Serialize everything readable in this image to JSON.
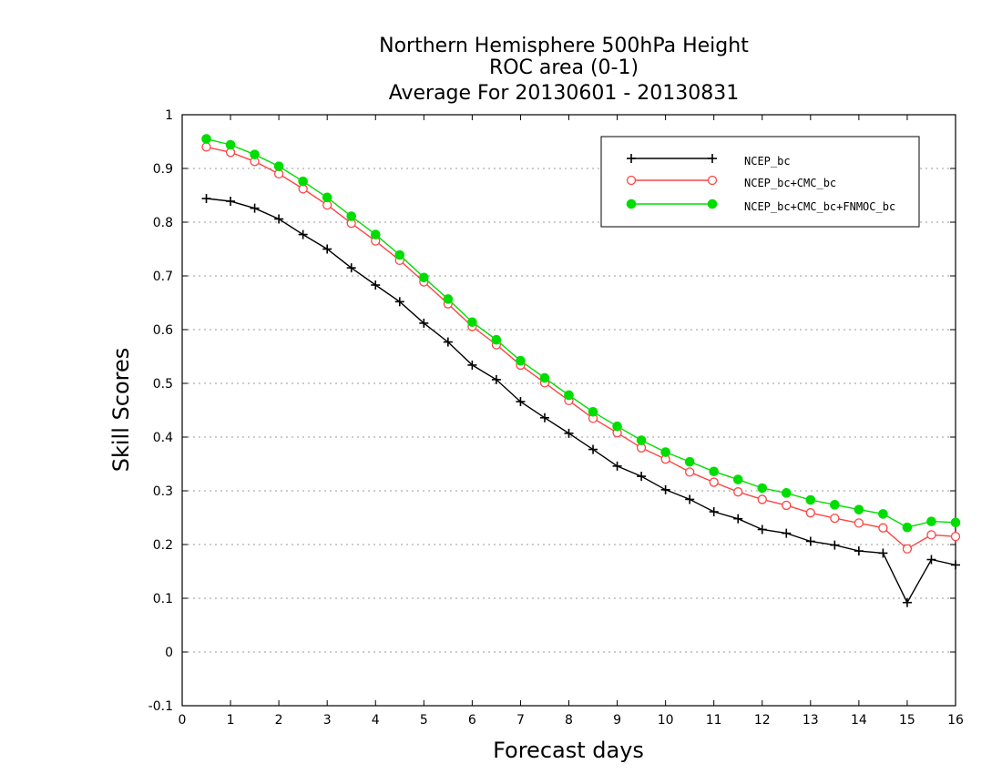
{
  "chart_data": {
    "type": "line",
    "title": "Northern Hemisphere 500hPa Height",
    "subtitle": "ROC area (0-1)",
    "period": "Average For 20130601 - 20130831",
    "xlabel": "Forecast days",
    "ylabel": "Skill Scores",
    "xlim": [
      0,
      16
    ],
    "ylim": [
      -0.1,
      1
    ],
    "xticks": [
      "0",
      "1",
      "2",
      "3",
      "4",
      "5",
      "6",
      "7",
      "8",
      "9",
      "10",
      "11",
      "12",
      "13",
      "14",
      "15",
      "16"
    ],
    "yticks": [
      "-0.1",
      "0",
      "0.1",
      "0.2",
      "0.3",
      "0.4",
      "0.5",
      "0.6",
      "0.7",
      "0.8",
      "0.9",
      "1"
    ],
    "grid": "horizontal dotted",
    "legend_position": "top-right",
    "x": [
      0.5,
      1,
      1.5,
      2,
      2.5,
      3,
      3.5,
      4,
      4.5,
      5,
      5.5,
      6,
      6.5,
      7,
      7.5,
      8,
      8.5,
      9,
      9.5,
      10,
      10.5,
      11,
      11.5,
      12,
      12.5,
      13,
      13.5,
      14,
      14.5,
      15,
      15.5,
      16
    ],
    "series": [
      {
        "name": "NCEP_bc",
        "color": "#000000",
        "marker": "plus",
        "values": [
          0.844,
          0.839,
          0.826,
          0.806,
          0.777,
          0.75,
          0.715,
          0.683,
          0.652,
          0.612,
          0.577,
          0.534,
          0.507,
          0.466,
          0.436,
          0.407,
          0.377,
          0.346,
          0.327,
          0.302,
          0.284,
          0.261,
          0.248,
          0.228,
          0.221,
          0.206,
          0.199,
          0.188,
          0.184,
          0.092,
          0.172,
          0.162
        ]
      },
      {
        "name": "NCEP_bc+CMC_bc",
        "color": "#ff4444",
        "marker": "open-circle",
        "values": [
          0.94,
          0.93,
          0.913,
          0.89,
          0.862,
          0.832,
          0.798,
          0.765,
          0.729,
          0.689,
          0.648,
          0.606,
          0.572,
          0.534,
          0.501,
          0.468,
          0.435,
          0.408,
          0.38,
          0.359,
          0.335,
          0.316,
          0.298,
          0.284,
          0.273,
          0.259,
          0.249,
          0.24,
          0.231,
          0.192,
          0.218,
          0.215
        ]
      },
      {
        "name": "NCEP_bc+CMC_bc+FNMOC_bc",
        "color": "#00dd00",
        "marker": "filled-circle",
        "values": [
          0.955,
          0.944,
          0.926,
          0.904,
          0.876,
          0.846,
          0.811,
          0.777,
          0.739,
          0.697,
          0.657,
          0.614,
          0.581,
          0.542,
          0.51,
          0.478,
          0.447,
          0.42,
          0.394,
          0.372,
          0.354,
          0.336,
          0.321,
          0.305,
          0.296,
          0.283,
          0.274,
          0.265,
          0.257,
          0.232,
          0.243,
          0.241
        ]
      }
    ]
  }
}
